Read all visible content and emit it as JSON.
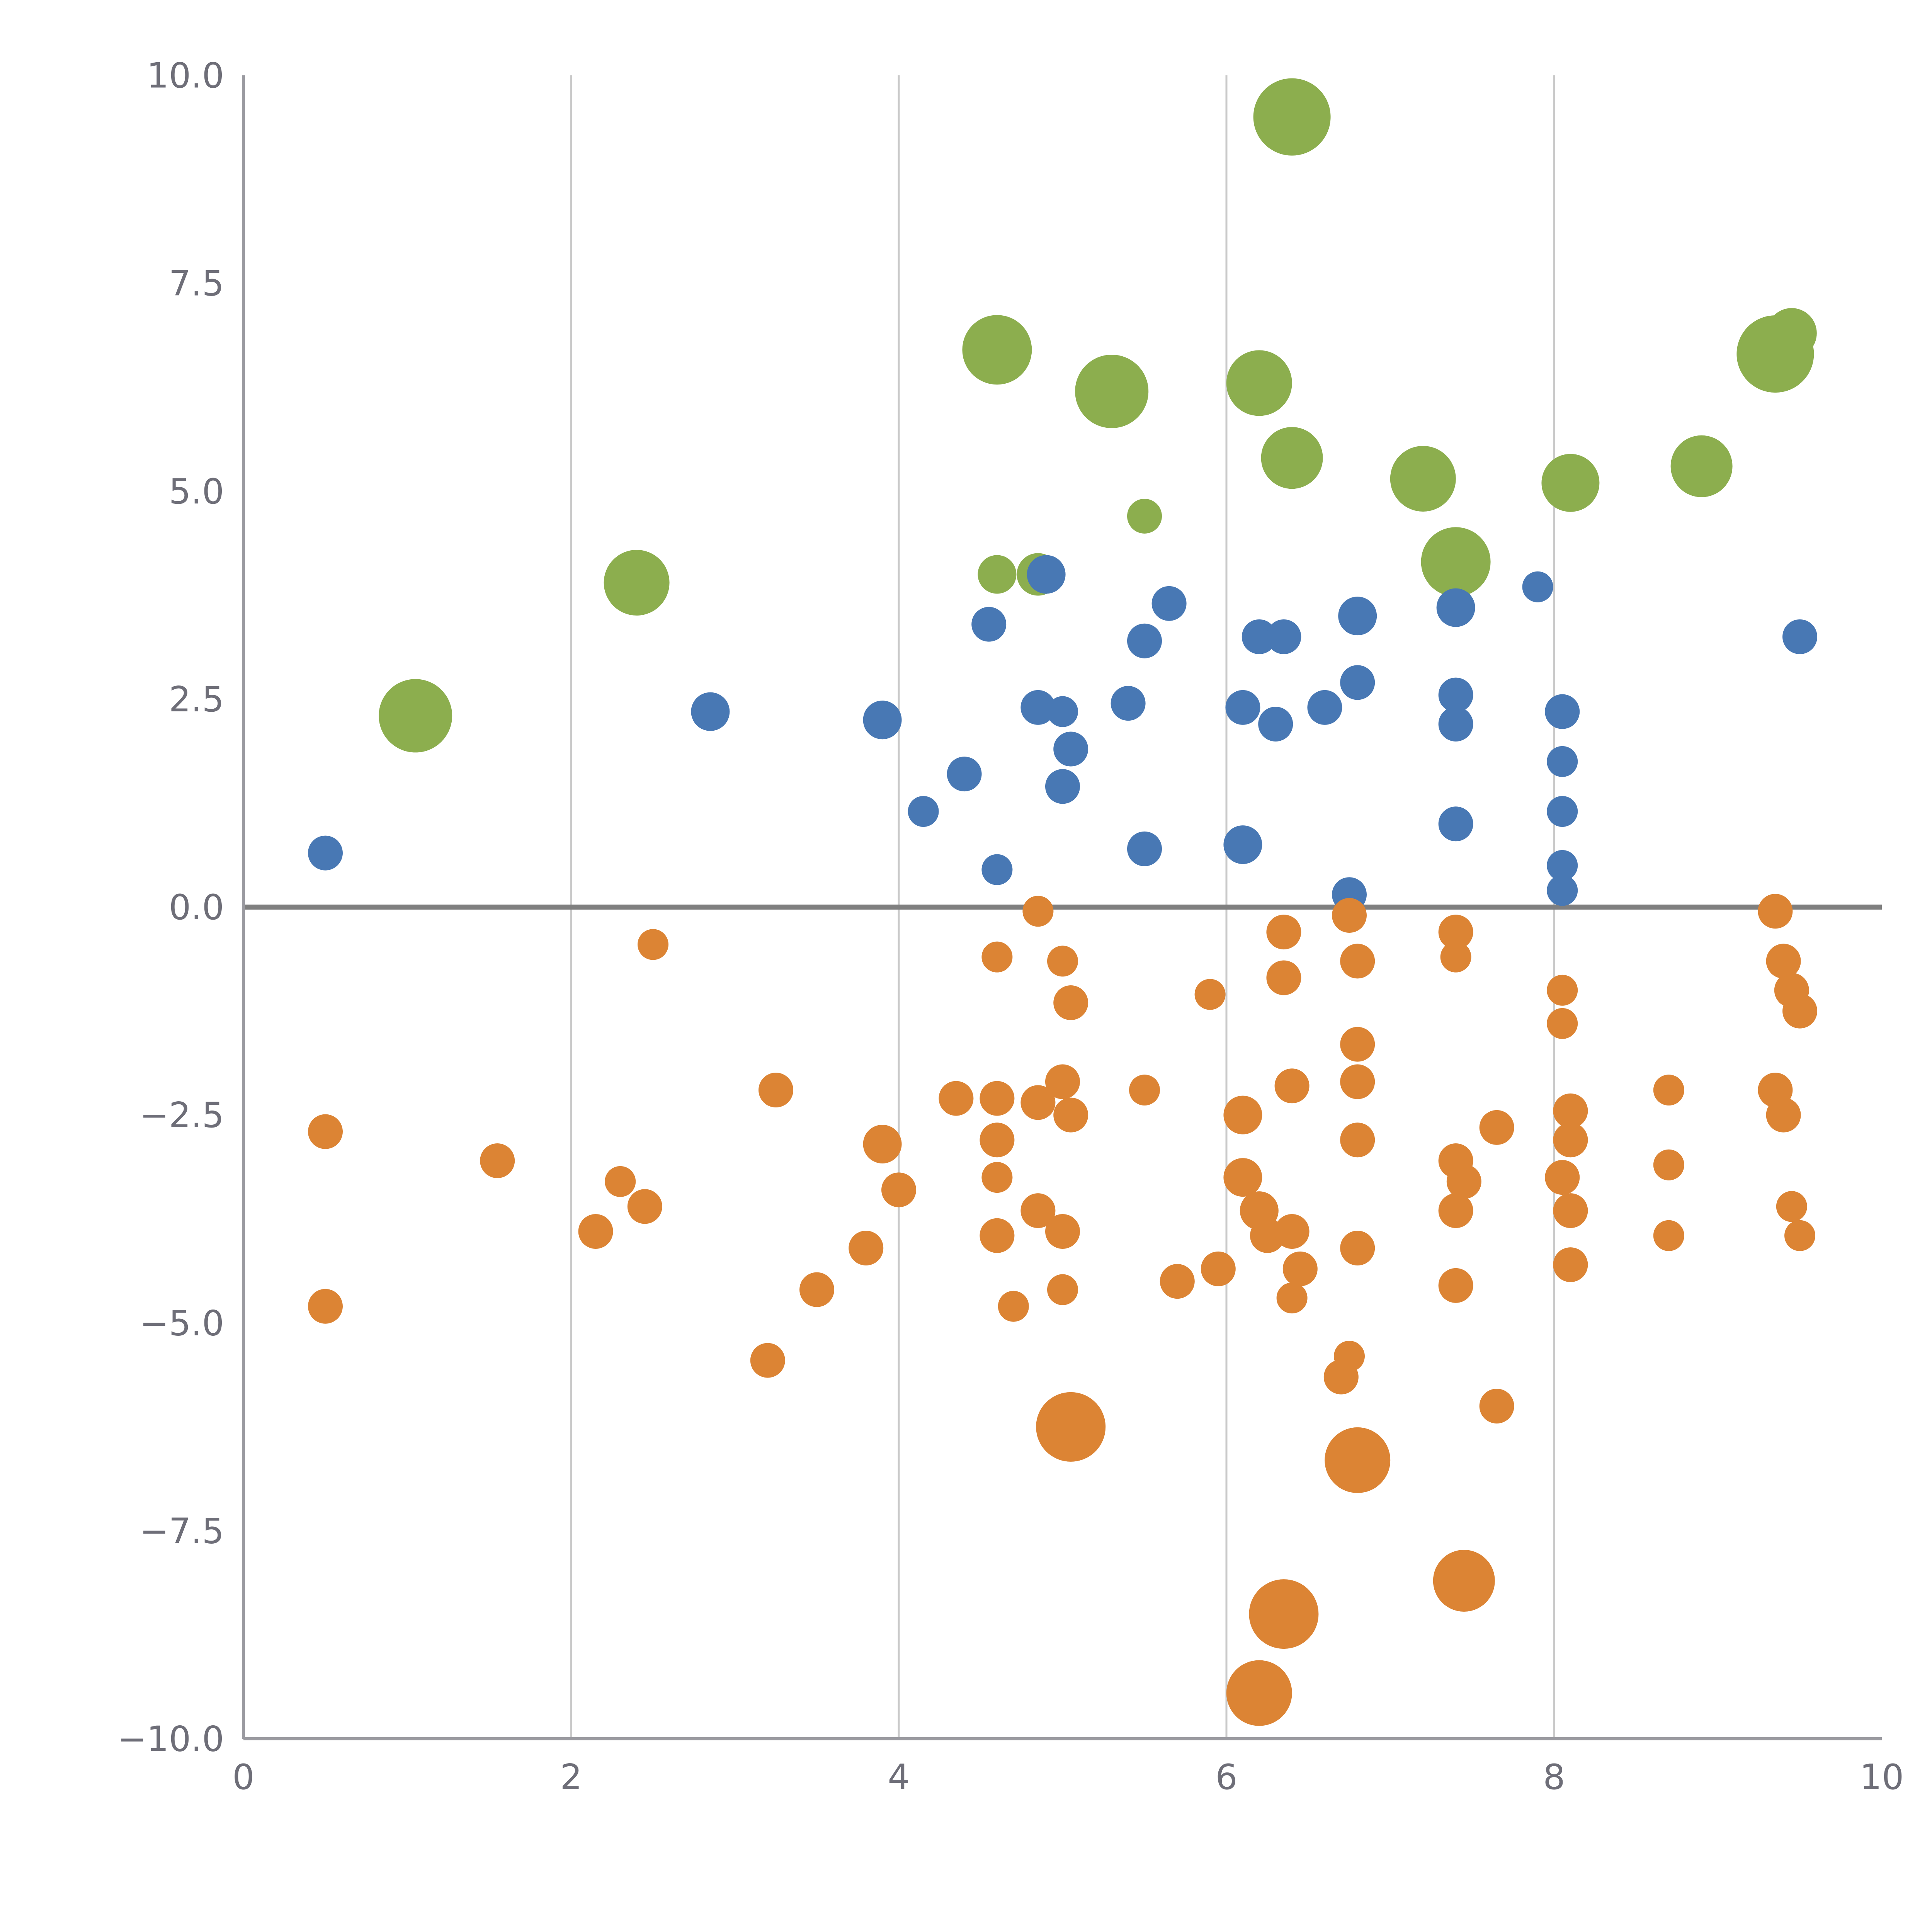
{
  "chart_data": {
    "type": "scatter",
    "title": "",
    "xlabel": "",
    "ylabel": "",
    "xlim": [
      0,
      10
    ],
    "ylim": [
      -10,
      10
    ],
    "x_ticks": [
      0,
      2,
      4,
      6,
      8,
      10
    ],
    "x_tick_labels": [
      "0",
      "2",
      "4",
      "6",
      "8",
      "10"
    ],
    "y_ticks": [
      10,
      7.5,
      5,
      2.5,
      0,
      -2.5,
      -5,
      -7.5,
      -10
    ],
    "y_tick_labels": [
      "10.0",
      "7.5",
      "5.0",
      "2.5",
      "0.0",
      "−2.5",
      "−5.0",
      "−7.5",
      "−10.0"
    ],
    "grid": {
      "vertical_lines_at": [
        2,
        4,
        6,
        8
      ],
      "grid_color": "#c9c9c9",
      "zero_line_y": 0,
      "zero_line_color": "#7f7f7f",
      "axis_color": "#9a9aa0"
    },
    "legend": "none",
    "colors": {
      "green": "#8cae4e",
      "blue": "#4878b4",
      "orange": "#dc8434"
    },
    "series": [
      {
        "name": "green-bubbles",
        "color": "#8cae4e",
        "points": [
          [
            6.4,
            9.5,
            20
          ],
          [
            4.6,
            6.7,
            18
          ],
          [
            5.3,
            6.2,
            19
          ],
          [
            6.2,
            6.3,
            17
          ],
          [
            9.35,
            6.65,
            20
          ],
          [
            9.45,
            6.9,
            13
          ],
          [
            6.4,
            5.4,
            16
          ],
          [
            7.2,
            5.15,
            17
          ],
          [
            8.1,
            5.1,
            15
          ],
          [
            8.9,
            5.3,
            16
          ],
          [
            5.5,
            4.7,
            9
          ],
          [
            7.4,
            4.15,
            18
          ],
          [
            2.4,
            3.9,
            17
          ],
          [
            4.6,
            4.0,
            10
          ],
          [
            4.85,
            4.0,
            11
          ],
          [
            1.05,
            2.3,
            19
          ]
        ]
      },
      {
        "name": "blue-dots",
        "color": "#4878b4",
        "points": [
          [
            0.5,
            0.65,
            9
          ],
          [
            2.85,
            2.35,
            10
          ],
          [
            3.9,
            2.25,
            10
          ],
          [
            4.15,
            1.15,
            8
          ],
          [
            4.4,
            1.6,
            9
          ],
          [
            4.55,
            3.4,
            9
          ],
          [
            4.6,
            0.45,
            8
          ],
          [
            4.9,
            4.0,
            10
          ],
          [
            4.85,
            2.4,
            9
          ],
          [
            5.0,
            2.35,
            8
          ],
          [
            5.05,
            1.9,
            9
          ],
          [
            5.0,
            1.45,
            9
          ],
          [
            5.4,
            2.45,
            9
          ],
          [
            5.5,
            3.2,
            9
          ],
          [
            5.65,
            3.65,
            9
          ],
          [
            5.5,
            0.7,
            9
          ],
          [
            6.2,
            3.25,
            9
          ],
          [
            6.35,
            3.25,
            9
          ],
          [
            6.1,
            2.4,
            9
          ],
          [
            6.3,
            2.2,
            9
          ],
          [
            6.1,
            0.75,
            10
          ],
          [
            6.6,
            2.4,
            9
          ],
          [
            6.8,
            2.7,
            9
          ],
          [
            6.8,
            3.5,
            10
          ],
          [
            6.75,
            0.15,
            9
          ],
          [
            7.4,
            3.6,
            10
          ],
          [
            7.4,
            2.55,
            9
          ],
          [
            7.4,
            2.2,
            9
          ],
          [
            7.4,
            1.0,
            9
          ],
          [
            7.9,
            3.85,
            8
          ],
          [
            8.05,
            2.35,
            9
          ],
          [
            8.05,
            1.75,
            8
          ],
          [
            8.05,
            1.15,
            8
          ],
          [
            8.05,
            0.5,
            8
          ],
          [
            8.05,
            0.2,
            8
          ],
          [
            9.5,
            3.25,
            9
          ]
        ]
      },
      {
        "name": "orange-dots",
        "color": "#dc8434",
        "points": [
          [
            0.5,
            -2.7,
            9
          ],
          [
            0.5,
            -4.8,
            9
          ],
          [
            1.55,
            -3.05,
            9
          ],
          [
            2.15,
            -3.9,
            9
          ],
          [
            2.3,
            -3.3,
            8
          ],
          [
            2.45,
            -3.6,
            9
          ],
          [
            2.5,
            -0.45,
            8
          ],
          [
            3.25,
            -2.2,
            9
          ],
          [
            3.2,
            -5.45,
            9
          ],
          [
            3.5,
            -4.6,
            9
          ],
          [
            3.8,
            -4.1,
            9
          ],
          [
            3.9,
            -2.85,
            10
          ],
          [
            4.0,
            -3.4,
            9
          ],
          [
            4.35,
            -2.3,
            9
          ],
          [
            4.6,
            -0.6,
            8
          ],
          [
            4.6,
            -2.3,
            9
          ],
          [
            4.6,
            -2.8,
            9
          ],
          [
            4.6,
            -3.25,
            8
          ],
          [
            4.6,
            -3.95,
            9
          ],
          [
            4.7,
            -4.8,
            8
          ],
          [
            4.85,
            -0.05,
            8
          ],
          [
            4.85,
            -2.35,
            9
          ],
          [
            4.85,
            -3.65,
            9
          ],
          [
            5.0,
            -0.65,
            8
          ],
          [
            5.05,
            -1.15,
            9
          ],
          [
            5.0,
            -2.1,
            9
          ],
          [
            5.05,
            -2.5,
            9
          ],
          [
            5.0,
            -3.9,
            9
          ],
          [
            5.0,
            -4.6,
            8
          ],
          [
            5.05,
            -6.25,
            18
          ],
          [
            5.5,
            -2.2,
            8
          ],
          [
            5.7,
            -4.5,
            9
          ],
          [
            5.9,
            -1.05,
            8
          ],
          [
            5.95,
            -4.35,
            9
          ],
          [
            6.1,
            -2.5,
            10
          ],
          [
            6.1,
            -3.25,
            10
          ],
          [
            6.2,
            -3.65,
            10
          ],
          [
            6.25,
            -3.95,
            9
          ],
          [
            6.35,
            -0.3,
            9
          ],
          [
            6.35,
            -0.85,
            9
          ],
          [
            6.4,
            -2.15,
            9
          ],
          [
            6.45,
            -4.35,
            9
          ],
          [
            6.4,
            -4.7,
            8
          ],
          [
            6.4,
            -3.9,
            9
          ],
          [
            6.75,
            -0.1,
            9
          ],
          [
            6.8,
            -0.65,
            9
          ],
          [
            6.8,
            -1.65,
            9
          ],
          [
            6.8,
            -2.1,
            9
          ],
          [
            6.8,
            -2.8,
            9
          ],
          [
            6.8,
            -4.1,
            9
          ],
          [
            6.7,
            -5.65,
            9
          ],
          [
            6.75,
            -5.4,
            8
          ],
          [
            6.8,
            -6.65,
            17
          ],
          [
            6.35,
            -8.5,
            18
          ],
          [
            6.2,
            -9.45,
            17
          ],
          [
            7.4,
            -0.3,
            9
          ],
          [
            7.4,
            -0.6,
            8
          ],
          [
            7.4,
            -3.05,
            9
          ],
          [
            7.45,
            -3.3,
            9
          ],
          [
            7.4,
            -3.65,
            9
          ],
          [
            7.4,
            -4.55,
            9
          ],
          [
            7.65,
            -2.65,
            9
          ],
          [
            7.65,
            -6.0,
            9
          ],
          [
            7.45,
            -8.1,
            16
          ],
          [
            8.05,
            -1.0,
            8
          ],
          [
            8.05,
            -1.4,
            8
          ],
          [
            8.1,
            -2.45,
            9
          ],
          [
            8.1,
            -2.8,
            9
          ],
          [
            8.05,
            -3.25,
            9
          ],
          [
            8.1,
            -3.65,
            9
          ],
          [
            8.1,
            -4.3,
            9
          ],
          [
            8.7,
            -2.2,
            8
          ],
          [
            8.7,
            -3.1,
            8
          ],
          [
            8.7,
            -3.95,
            8
          ],
          [
            9.35,
            -0.05,
            9
          ],
          [
            9.4,
            -0.65,
            9
          ],
          [
            9.45,
            -1.0,
            9
          ],
          [
            9.5,
            -1.25,
            9
          ],
          [
            9.35,
            -2.2,
            9
          ],
          [
            9.4,
            -2.5,
            9
          ],
          [
            9.45,
            -3.6,
            8
          ],
          [
            9.5,
            -3.95,
            8
          ]
        ]
      }
    ],
    "layout": {
      "plot_left": 126,
      "plot_right": 974,
      "plot_top": 39,
      "plot_bottom": 900,
      "tick_font_size": 18,
      "x_tick_label_y_offset": 26,
      "y_tick_label_x": 116
    }
  }
}
